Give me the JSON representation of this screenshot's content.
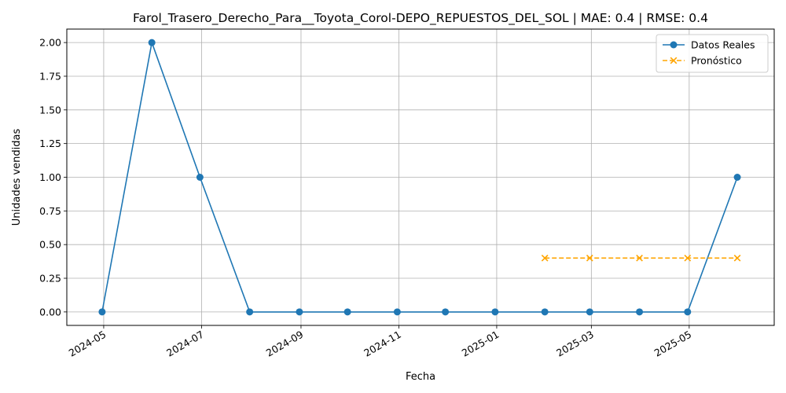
{
  "chart_data": {
    "type": "line",
    "title": "Farol_Trasero_Derecho_Para__Toyota_Corol-DEPO_REPUESTOS_DEL_SOL | MAE: 0.4 | RMSE: 0.4",
    "xlabel": "Fecha",
    "ylabel": "Unidades vendidas",
    "xlim": [
      "2024-04-08",
      "2025-06-23"
    ],
    "ylim": [
      -0.1,
      2.1
    ],
    "x_ticks": [
      "2024-05",
      "2024-07",
      "2024-09",
      "2024-11",
      "2025-01",
      "2025-03",
      "2025-05"
    ],
    "y_ticks": [
      "0.00",
      "0.25",
      "0.50",
      "0.75",
      "1.00",
      "1.25",
      "1.50",
      "1.75",
      "2.00"
    ],
    "grid": true,
    "legend_position": "top-right",
    "series": [
      {
        "name": "Datos Reales",
        "color": "#1f77b4",
        "line_style": "solid",
        "marker": "circle",
        "x": [
          "2024-04-30",
          "2024-05-31",
          "2024-06-30",
          "2024-07-31",
          "2024-08-31",
          "2024-09-30",
          "2024-10-31",
          "2024-11-30",
          "2024-12-31",
          "2025-01-31",
          "2025-02-28",
          "2025-03-31",
          "2025-04-30",
          "2025-05-31"
        ],
        "values": [
          0,
          2,
          1,
          0,
          0,
          0,
          0,
          0,
          0,
          0,
          0,
          0,
          0,
          1
        ]
      },
      {
        "name": "Pronóstico",
        "color": "#ffa500",
        "line_style": "dashed",
        "marker": "x",
        "x": [
          "2025-01-31",
          "2025-02-28",
          "2025-03-31",
          "2025-04-30",
          "2025-05-31"
        ],
        "values": [
          0.4,
          0.4,
          0.4,
          0.4,
          0.4
        ]
      }
    ]
  }
}
